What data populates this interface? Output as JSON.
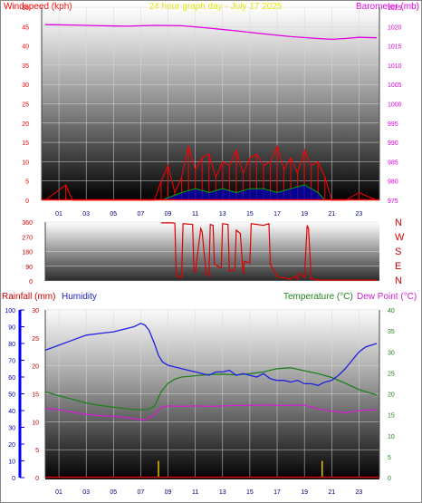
{
  "colors": {
    "windspeed": "#ff0000",
    "gust_grid": "#00aa00",
    "gust_blue": "#0000cc",
    "barometer": "#e000e0",
    "title": "#e8e800",
    "direction": "#dd0000",
    "rainfall": "#cc0000",
    "humidity": "#2020e0",
    "temperature": "#208020",
    "dewpoint": "#d020d0",
    "rain_bar": "#e0c000",
    "rain_scale": "#0000ff"
  },
  "chart_data": [
    {
      "type": "line",
      "title": "24 hour graph day - July 17 2025",
      "ylabel_left": "Windspeed (kph)",
      "ylabel_right": "Barometer (mb)",
      "xlim": [
        0,
        24.5
      ],
      "x_ticks": [
        "01",
        "03",
        "05",
        "07",
        "09",
        "11",
        "13",
        "15",
        "17",
        "19",
        "21",
        "23"
      ],
      "ylim_left": [
        0,
        50
      ],
      "y_ticks_left": [
        "0",
        "5",
        "10",
        "15",
        "20",
        "25",
        "30",
        "35",
        "40",
        "45",
        "50"
      ],
      "ylim_right": [
        975,
        1025
      ],
      "y_ticks_right": [
        "975",
        "980",
        "985",
        "990",
        "995",
        "1000",
        "1005",
        "1010",
        "1015",
        "1020",
        "1025"
      ],
      "series": [
        {
          "name": "Windspeed (kph)",
          "axis": "left",
          "x": [
            0,
            1.5,
            2,
            3,
            4,
            5,
            6,
            7,
            8,
            8.5,
            9,
            9.5,
            10,
            10.5,
            11,
            11.5,
            12,
            12.5,
            13,
            13.5,
            14,
            14.5,
            15,
            15.5,
            16,
            16.5,
            17,
            17.5,
            18,
            18.5,
            19,
            19.5,
            20,
            20.5,
            21,
            22,
            23,
            24.3
          ],
          "y": [
            0,
            4,
            0,
            0,
            0,
            0,
            0,
            0,
            0,
            5,
            9,
            2,
            6,
            14,
            8,
            11,
            12,
            6,
            10,
            9,
            13,
            7,
            11,
            12,
            9,
            10,
            14,
            8,
            11,
            7,
            13,
            9,
            10,
            6,
            0,
            0,
            2,
            0
          ]
        },
        {
          "name": "Gust",
          "axis": "left",
          "x": [
            8.5,
            10,
            11,
            12,
            13,
            14,
            15,
            16,
            17,
            18,
            19,
            20,
            20.5
          ],
          "y": [
            0,
            2,
            3,
            2,
            3,
            2,
            3,
            3,
            2,
            3,
            4,
            2,
            0
          ]
        },
        {
          "name": "Barometer (mb)",
          "axis": "right",
          "x": [
            0,
            2,
            4,
            6,
            8,
            10,
            12,
            14,
            16,
            18,
            20,
            21,
            22,
            23,
            24.3
          ],
          "y": [
            1020.5,
            1020.4,
            1020.2,
            1020.1,
            1020.3,
            1020.2,
            1019.6,
            1018.9,
            1018.1,
            1017.4,
            1016.9,
            1016.7,
            1016.9,
            1017.2,
            1017.1
          ]
        }
      ]
    },
    {
      "type": "line",
      "ylabel": "Direction",
      "ylim": [
        0,
        360
      ],
      "y_ticks": [
        "0",
        "90",
        "180",
        "270",
        "360"
      ],
      "right_labels": [
        "N",
        "W",
        "S",
        "E",
        "N"
      ],
      "xlim": [
        0,
        24.5
      ],
      "series": [
        {
          "name": "Wind direction",
          "x": [
            8.5,
            9.3,
            9.5,
            9.6,
            10.0,
            10.1,
            10.8,
            10.9,
            11.0,
            11.4,
            11.5,
            11.8,
            12.0,
            12.1,
            12.3,
            12.4,
            12.9,
            13.0,
            13.4,
            13.5,
            13.9,
            14.0,
            14.3,
            14.5,
            14.6,
            15.0,
            15.1,
            16.0,
            16.4,
            16.5,
            16.8,
            17.0,
            17.2,
            17.5,
            18.0,
            18.3,
            18.5,
            18.6,
            19.0,
            19.2,
            19.3,
            19.5,
            19.6,
            20.0,
            20.5,
            24.3
          ],
          "y": [
            355,
            355,
            352,
            30,
            20,
            350,
            345,
            60,
            55,
            320,
            300,
            40,
            30,
            345,
            340,
            100,
            80,
            350,
            345,
            60,
            70,
            310,
            290,
            40,
            120,
            110,
            350,
            340,
            350,
            100,
            60,
            30,
            20,
            20,
            10,
            30,
            10,
            50,
            20,
            340,
            320,
            10,
            15,
            5,
            5,
            5
          ]
        }
      ]
    },
    {
      "type": "line",
      "legend": [
        "Rainfall (mm)",
        "Humidity",
        "Temperature (°C)",
        "Dew Point (°C)"
      ],
      "xlim": [
        0,
        24.5
      ],
      "x_ticks": [
        "01",
        "03",
        "05",
        "07",
        "09",
        "11",
        "13",
        "15",
        "17",
        "19",
        "21",
        "23"
      ],
      "humidity_ticks": [
        "0",
        "10",
        "20",
        "30",
        "40",
        "50",
        "60",
        "70",
        "80",
        "90",
        "100"
      ],
      "rain_ticks": [
        "0",
        "5",
        "10",
        "15",
        "20",
        "25",
        "30"
      ],
      "temp_ticks": [
        "0",
        "5",
        "10",
        "15",
        "20",
        "25",
        "30",
        "35",
        "40"
      ],
      "series": [
        {
          "name": "Humidity",
          "axis": "humidity",
          "x": [
            0,
            1,
            2,
            3,
            4,
            5,
            6,
            6.5,
            7,
            7.3,
            7.6,
            8,
            8.3,
            8.6,
            9,
            9.5,
            10,
            10.5,
            11,
            11.5,
            12,
            12.5,
            13,
            13.5,
            14,
            14.5,
            15,
            15.5,
            16,
            16.5,
            17,
            17.5,
            18,
            18.5,
            19,
            19.5,
            20,
            20.5,
            21,
            21.5,
            22,
            22.5,
            23,
            23.5,
            24.3
          ],
          "y": [
            76,
            79,
            82,
            85,
            86,
            87,
            89,
            90,
            92,
            91,
            88,
            80,
            73,
            69,
            67,
            66,
            65,
            64,
            63,
            62,
            61,
            63,
            63,
            64,
            61,
            62,
            61,
            60,
            62,
            59,
            58,
            58,
            57,
            58,
            56,
            56,
            55,
            57,
            58,
            61,
            65,
            70,
            75,
            78,
            80
          ]
        },
        {
          "name": "Temperature (°C)",
          "axis": "temp",
          "x": [
            0,
            1,
            2,
            3,
            4,
            5,
            6,
            7,
            7.5,
            8,
            8.5,
            9,
            9.5,
            10,
            11,
            12,
            13,
            14,
            15,
            16,
            17,
            18,
            19,
            20,
            21,
            22,
            23,
            24.3
          ],
          "y": [
            20.5,
            19.5,
            18.7,
            17.8,
            17.2,
            16.8,
            16.4,
            16.2,
            16.3,
            17,
            20.5,
            22.5,
            23.5,
            24,
            24.3,
            24.6,
            24.7,
            24.5,
            24.8,
            25.2,
            26,
            26.2,
            25.5,
            24.8,
            23.9,
            22.5,
            21,
            19.7
          ]
        },
        {
          "name": "Dew Point (°C)",
          "axis": "temp",
          "x": [
            0,
            1,
            2,
            3,
            4,
            5,
            6,
            7,
            7.5,
            8,
            8.5,
            9,
            10,
            11,
            12,
            13,
            14,
            15,
            16,
            17,
            18,
            19,
            20,
            21,
            22,
            23,
            24.3
          ],
          "y": [
            16.5,
            16.2,
            15.6,
            15.1,
            14.8,
            14.6,
            14.3,
            13.8,
            14.0,
            15.0,
            16.8,
            17.1,
            17.0,
            17.1,
            17.0,
            17.1,
            17.2,
            17.2,
            17.3,
            17.2,
            17.2,
            17.3,
            16.4,
            15.9,
            15.5,
            16.0,
            16.2
          ]
        },
        {
          "name": "Rainfall (mm)",
          "axis": "rain",
          "x": [
            8.3,
            20.3
          ],
          "y": [
            3,
            3
          ]
        }
      ]
    }
  ]
}
